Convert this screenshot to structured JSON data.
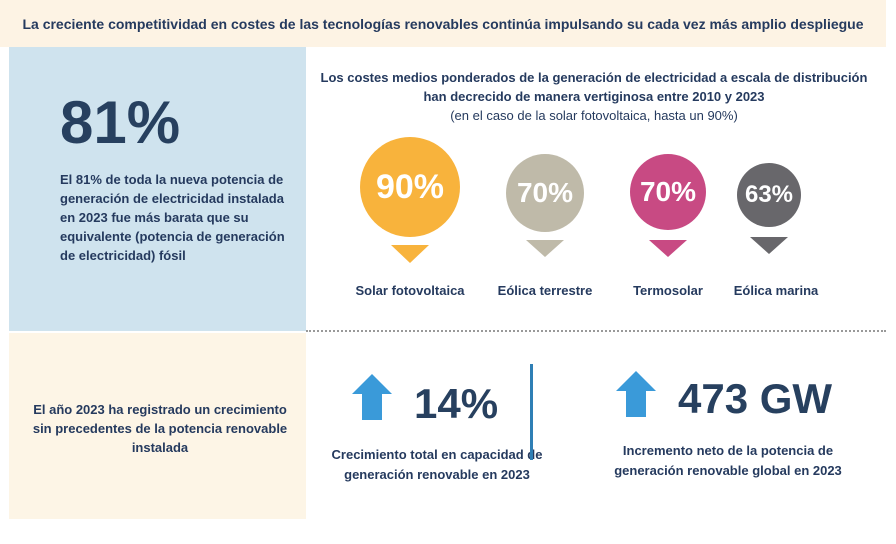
{
  "banner": {
    "title": "La creciente competitividad en costes de las tecnologías renovables continúa impulsando su cada vez más amplio despliegue"
  },
  "left_top": {
    "value": "81%",
    "description": "El 81% de toda la nueva potencia de generación de electricidad instalada en 2023 fue más barata que su equivalente (potencia de generación de electricidad) fósil"
  },
  "left_bottom": {
    "description": "El año 2023 ha registrado un crecimiento sin precedentes de la potencia renovable instalada"
  },
  "costs": {
    "heading": "Los costes medios ponderados de la generación de electricidad a escala de distribución han decrecido de manera vertiginosa entre 2010 y 2023",
    "note": "(en el caso de la solar fotovoltaica, hasta un 90%)",
    "items": [
      {
        "label": "Solar fotovoltaica",
        "value": "90%",
        "color": "#f8b33c"
      },
      {
        "label": "Eólica terrestre",
        "value": "70%",
        "color": "#bfbaa9"
      },
      {
        "label": "Termosolar",
        "value": "70%",
        "color": "#c84a83"
      },
      {
        "label": "Eólica marina",
        "value": "63%",
        "color": "#68676b"
      }
    ]
  },
  "stats": [
    {
      "value": "14%",
      "description": "Crecimiento total en capacidad de generación renovable en 2023"
    },
    {
      "value": "473 GW",
      "description": "Incremento neto de la potencia de generación renovable global en 2023"
    }
  ],
  "arrow_color": "#3a9ad9"
}
